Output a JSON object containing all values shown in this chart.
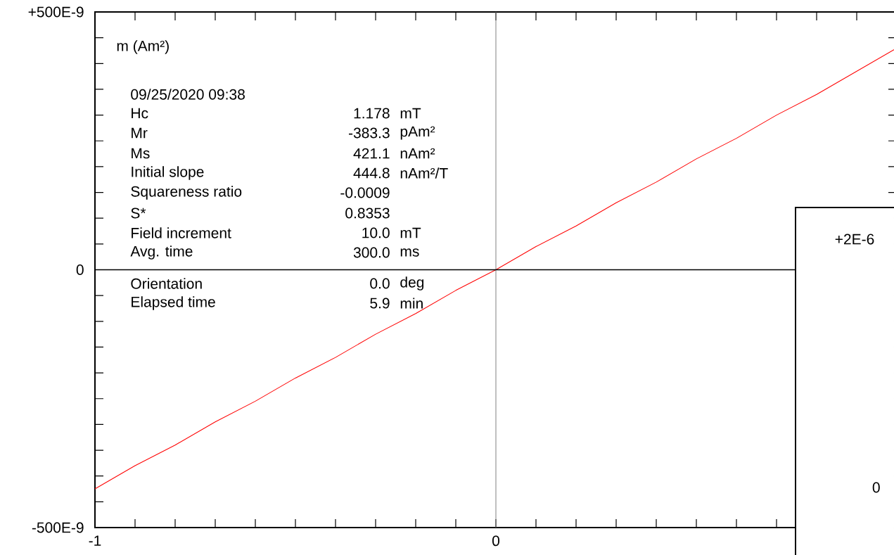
{
  "chart_data": [
    {
      "type": "line",
      "xlim": [
        -1,
        1
      ],
      "ylim": [
        -5e-07,
        5e-07
      ],
      "xticks": [
        {
          "value": -1,
          "label": "-1"
        },
        {
          "value": -0.9,
          "label": null
        },
        {
          "value": -0.8,
          "label": null
        },
        {
          "value": -0.7,
          "label": null
        },
        {
          "value": -0.6,
          "label": null
        },
        {
          "value": -0.5,
          "label": null
        },
        {
          "value": -0.4,
          "label": null
        },
        {
          "value": -0.3,
          "label": null
        },
        {
          "value": -0.2,
          "label": null
        },
        {
          "value": -0.1,
          "label": null
        },
        {
          "value": 0,
          "label": "0"
        },
        {
          "value": 0.1,
          "label": null
        },
        {
          "value": 0.2,
          "label": null
        },
        {
          "value": 0.3,
          "label": null
        },
        {
          "value": 0.4,
          "label": null
        },
        {
          "value": 0.5,
          "label": null
        },
        {
          "value": 0.6,
          "label": null
        },
        {
          "value": 0.7,
          "label": null
        },
        {
          "value": 0.8,
          "label": null
        },
        {
          "value": 0.9,
          "label": null
        },
        {
          "value": 1,
          "label": null
        }
      ],
      "yticks": [
        {
          "value": -5e-07,
          "label": "-500E-9"
        },
        {
          "value": -4.5e-07,
          "label": null
        },
        {
          "value": -4e-07,
          "label": null
        },
        {
          "value": -3.5e-07,
          "label": null
        },
        {
          "value": -3e-07,
          "label": null
        },
        {
          "value": -2.5e-07,
          "label": null
        },
        {
          "value": -2e-07,
          "label": null
        },
        {
          "value": -1.5e-07,
          "label": null
        },
        {
          "value": -1e-07,
          "label": null
        },
        {
          "value": -5e-08,
          "label": null
        },
        {
          "value": 0,
          "label": "0"
        },
        {
          "value": 5e-08,
          "label": null
        },
        {
          "value": 1e-07,
          "label": null
        },
        {
          "value": 1.5e-07,
          "label": null
        },
        {
          "value": 2e-07,
          "label": null
        },
        {
          "value": 2.5e-07,
          "label": null
        },
        {
          "value": 3e-07,
          "label": null
        },
        {
          "value": 3.5e-07,
          "label": null
        },
        {
          "value": 4e-07,
          "label": null
        },
        {
          "value": 4.5e-07,
          "label": null
        },
        {
          "value": 5e-07,
          "label": "+500E-9"
        }
      ],
      "series": [
        {
          "color": "#ff0000",
          "x": [
            -1,
            -0.9,
            -0.8,
            -0.7,
            -0.6,
            -0.5,
            -0.4,
            -0.3,
            -0.2,
            -0.1,
            0,
            0.1,
            0.2,
            0.3,
            0.4,
            0.5,
            0.6,
            0.7,
            0.8,
            0.9,
            1
          ],
          "values": [
            -4.25e-07,
            -3.8e-07,
            -3.4e-07,
            -2.95e-07,
            -2.55e-07,
            -2.1e-07,
            -1.7e-07,
            -1.25e-07,
            -8.5e-08,
            -4e-08,
            0,
            4.5e-08,
            8.5e-08,
            1.3e-07,
            1.7e-07,
            2.15e-07,
            2.55e-07,
            3e-07,
            3.4e-07,
            3.85e-07,
            4.3e-07
          ]
        }
      ],
      "marker": "none",
      "line_style": "solid",
      "grid": false,
      "annotations": [
        "m (Am²)",
        "09/25/2020  09:38",
        "Hc",
        "1.178",
        "mT",
        "Mr",
        "-383.3",
        "pAm²",
        "Ms",
        "421.1",
        "nAm²",
        "Initial slope",
        "444.8",
        "nAm²/T",
        "Squareness ratio",
        "-0.0009",
        "S*",
        "0.8353",
        "Field increment",
        "10.0",
        "mT",
        "Avg. time",
        "300.0",
        "ms",
        "Orientation",
        "0.0",
        "deg",
        "Elapsed time",
        "5.9",
        "min"
      ]
    },
    {
      "type": "other",
      "annotations": [
        "+2E-6",
        "0"
      ]
    }
  ]
}
